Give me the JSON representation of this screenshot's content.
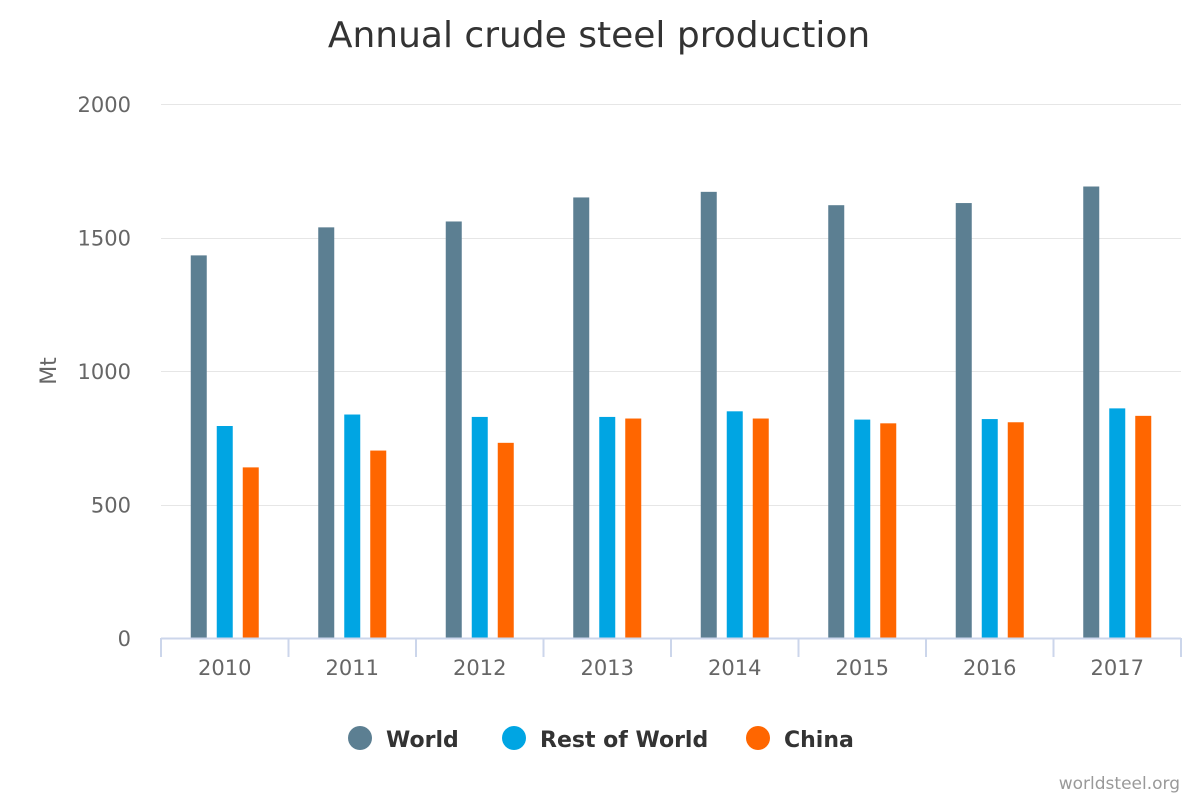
{
  "chart_data": {
    "type": "bar",
    "title": "Annual crude steel production",
    "ylabel": "Mt",
    "xlabel": "",
    "ylim": [
      0,
      2000
    ],
    "yticks": [
      0,
      500,
      1000,
      1500,
      2000
    ],
    "categories": [
      "2010",
      "2011",
      "2012",
      "2013",
      "2014",
      "2015",
      "2016",
      "2017"
    ],
    "series": [
      {
        "name": "World",
        "color": "#5c7f92",
        "values": [
          1433,
          1538,
          1560,
          1650,
          1671,
          1621,
          1629,
          1691
        ]
      },
      {
        "name": "Rest of World",
        "color": "#00a5e3",
        "values": [
          794,
          837,
          828,
          828,
          849,
          818,
          820,
          860
        ]
      },
      {
        "name": "China",
        "color": "#ff6600",
        "values": [
          639,
          702,
          731,
          822,
          822,
          804,
          808,
          832
        ]
      }
    ],
    "legend_position": "bottom-center",
    "grid": true
  },
  "credit": "worldsteel.org"
}
